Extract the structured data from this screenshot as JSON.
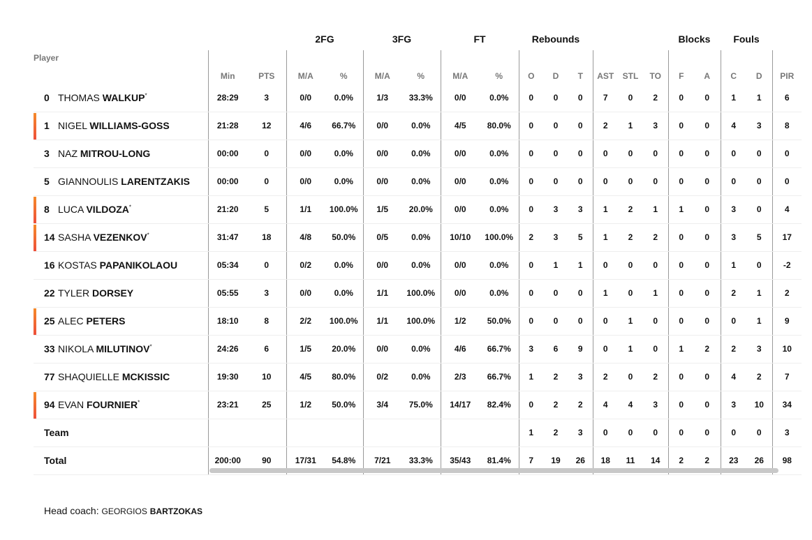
{
  "groups": [
    "",
    "",
    "2FG",
    "3FG",
    "FT",
    "Rebounds",
    "",
    "Blocks",
    "Fouls",
    ""
  ],
  "columns": [
    "Player",
    "Min",
    "PTS",
    "M/A",
    "%",
    "M/A",
    "%",
    "M/A",
    "%",
    "O",
    "D",
    "T",
    "AST",
    "STL",
    "TO",
    "F",
    "A",
    "C",
    "D",
    "PIR"
  ],
  "accent_color": "#f05a28",
  "players": [
    {
      "num": "0",
      "first": "THOMAS",
      "last": "WALKUP",
      "starter": true,
      "mark": false,
      "stats": [
        "28:29",
        "3",
        "0/0",
        "0.0%",
        "1/3",
        "33.3%",
        "0/0",
        "0.0%",
        "0",
        "0",
        "0",
        "7",
        "0",
        "2",
        "0",
        "0",
        "1",
        "1",
        "6"
      ]
    },
    {
      "num": "1",
      "first": "NIGEL",
      "last": "WILLIAMS-GOSS",
      "starter": false,
      "mark": true,
      "stats": [
        "21:28",
        "12",
        "4/6",
        "66.7%",
        "0/0",
        "0.0%",
        "4/5",
        "80.0%",
        "0",
        "0",
        "0",
        "2",
        "1",
        "3",
        "0",
        "0",
        "4",
        "3",
        "8"
      ]
    },
    {
      "num": "3",
      "first": "NAZ",
      "last": "MITROU-LONG",
      "starter": false,
      "mark": false,
      "stats": [
        "00:00",
        "0",
        "0/0",
        "0.0%",
        "0/0",
        "0.0%",
        "0/0",
        "0.0%",
        "0",
        "0",
        "0",
        "0",
        "0",
        "0",
        "0",
        "0",
        "0",
        "0",
        "0"
      ]
    },
    {
      "num": "5",
      "first": "GIANNOULIS",
      "last": "LARENTZAKIS",
      "starter": false,
      "mark": false,
      "stats": [
        "00:00",
        "0",
        "0/0",
        "0.0%",
        "0/0",
        "0.0%",
        "0/0",
        "0.0%",
        "0",
        "0",
        "0",
        "0",
        "0",
        "0",
        "0",
        "0",
        "0",
        "0",
        "0"
      ]
    },
    {
      "num": "8",
      "first": "LUCA",
      "last": "VILDOZA",
      "starter": true,
      "mark": true,
      "stats": [
        "21:20",
        "5",
        "1/1",
        "100.0%",
        "1/5",
        "20.0%",
        "0/0",
        "0.0%",
        "0",
        "3",
        "3",
        "1",
        "2",
        "1",
        "1",
        "0",
        "3",
        "0",
        "4"
      ]
    },
    {
      "num": "14",
      "first": "SASHA",
      "last": "VEZENKOV",
      "starter": true,
      "mark": true,
      "stats": [
        "31:47",
        "18",
        "4/8",
        "50.0%",
        "0/5",
        "0.0%",
        "10/10",
        "100.0%",
        "2",
        "3",
        "5",
        "1",
        "2",
        "2",
        "0",
        "0",
        "3",
        "5",
        "17"
      ]
    },
    {
      "num": "16",
      "first": "KOSTAS",
      "last": "PAPANIKOLAOU",
      "starter": false,
      "mark": false,
      "stats": [
        "05:34",
        "0",
        "0/2",
        "0.0%",
        "0/0",
        "0.0%",
        "0/0",
        "0.0%",
        "0",
        "1",
        "1",
        "0",
        "0",
        "0",
        "0",
        "0",
        "1",
        "0",
        "-2"
      ]
    },
    {
      "num": "22",
      "first": "TYLER",
      "last": "DORSEY",
      "starter": false,
      "mark": false,
      "stats": [
        "05:55",
        "3",
        "0/0",
        "0.0%",
        "1/1",
        "100.0%",
        "0/0",
        "0.0%",
        "0",
        "0",
        "0",
        "1",
        "0",
        "1",
        "0",
        "0",
        "2",
        "1",
        "2"
      ]
    },
    {
      "num": "25",
      "first": "ALEC",
      "last": "PETERS",
      "starter": false,
      "mark": true,
      "stats": [
        "18:10",
        "8",
        "2/2",
        "100.0%",
        "1/1",
        "100.0%",
        "1/2",
        "50.0%",
        "0",
        "0",
        "0",
        "0",
        "1",
        "0",
        "0",
        "0",
        "0",
        "1",
        "9"
      ]
    },
    {
      "num": "33",
      "first": "NIKOLA",
      "last": "MILUTINOV",
      "starter": true,
      "mark": false,
      "stats": [
        "24:26",
        "6",
        "1/5",
        "20.0%",
        "0/0",
        "0.0%",
        "4/6",
        "66.7%",
        "3",
        "6",
        "9",
        "0",
        "1",
        "0",
        "1",
        "2",
        "2",
        "3",
        "10"
      ]
    },
    {
      "num": "77",
      "first": "SHAQUIELLE",
      "last": "MCKISSIC",
      "starter": false,
      "mark": false,
      "stats": [
        "19:30",
        "10",
        "4/5",
        "80.0%",
        "0/2",
        "0.0%",
        "2/3",
        "66.7%",
        "1",
        "2",
        "3",
        "2",
        "0",
        "2",
        "0",
        "0",
        "4",
        "2",
        "7"
      ]
    },
    {
      "num": "94",
      "first": "EVAN",
      "last": "FOURNIER",
      "starter": true,
      "mark": true,
      "stats": [
        "23:21",
        "25",
        "1/2",
        "50.0%",
        "3/4",
        "75.0%",
        "14/17",
        "82.4%",
        "0",
        "2",
        "2",
        "4",
        "4",
        "3",
        "0",
        "0",
        "3",
        "10",
        "34"
      ]
    }
  ],
  "team": {
    "label": "Team",
    "stats": [
      "",
      "",
      "",
      "",
      "",
      "",
      "",
      "",
      "1",
      "2",
      "3",
      "0",
      "0",
      "0",
      "0",
      "0",
      "0",
      "0",
      "3"
    ]
  },
  "total": {
    "label": "Total",
    "stats": [
      "200:00",
      "90",
      "17/31",
      "54.8%",
      "7/21",
      "33.3%",
      "35/43",
      "81.4%",
      "7",
      "19",
      "26",
      "18",
      "11",
      "14",
      "2",
      "2",
      "23",
      "26",
      "98"
    ]
  },
  "coach": {
    "label": "Head coach:",
    "first": "GEORGIOS",
    "last": "BARTZOKAS"
  }
}
